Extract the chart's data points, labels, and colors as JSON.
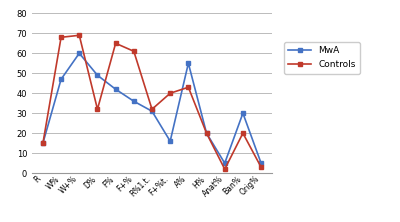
{
  "categories": [
    "R",
    "W%",
    "W+%",
    "D%",
    "F%",
    "F+%",
    "R%1.t.",
    "F+%t.",
    "A%",
    "H%",
    "Anat%",
    "Ban%",
    "Orig%"
  ],
  "MwA": [
    15,
    47,
    60,
    49,
    42,
    36,
    31,
    16,
    55,
    20,
    5,
    30,
    5
  ],
  "Controls": [
    15,
    68,
    69,
    32,
    65,
    61,
    32,
    40,
    43,
    20,
    2,
    20,
    3
  ],
  "mwa_color": "#4472C4",
  "controls_color": "#C0392B",
  "mwa_label": "MwA",
  "controls_label": "Controls",
  "ylim": [
    0,
    80
  ],
  "yticks": [
    0,
    10,
    20,
    30,
    40,
    50,
    60,
    70,
    80
  ],
  "grid_color": "#BBBBBB",
  "background_color": "#FFFFFF"
}
